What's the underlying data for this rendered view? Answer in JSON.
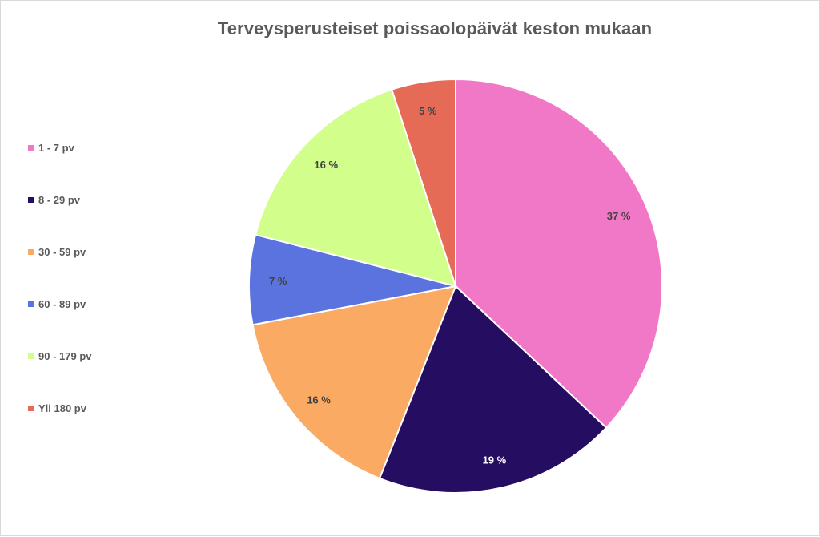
{
  "chart_data": {
    "type": "pie",
    "title": "Terveysperusteiset poissaolopäivät keston mukaan",
    "categories": [
      "1 - 7 pv",
      "8 - 29 pv",
      "30 - 59 pv",
      "60 - 89 pv",
      "90 - 179 pv",
      "Yli 180 pv"
    ],
    "values": [
      37,
      19,
      16,
      7,
      16,
      5
    ],
    "unit": "%",
    "data_labels": [
      "37 %",
      "19 %",
      "16 %",
      "7 %",
      "16 %",
      "5 %"
    ],
    "colors": [
      "#f178c6",
      "#250e62",
      "#fbaa64",
      "#5a73df",
      "#d2fe8c",
      "#e66b56"
    ],
    "label_colors": [
      "#404040",
      "#ffffff",
      "#404040",
      "#404040",
      "#404040",
      "#404040"
    ],
    "start_angle": "12 o'clock",
    "direction": "clockwise",
    "legend_position": "left"
  },
  "legend": {
    "items": [
      {
        "label": "1 - 7 pv",
        "color": "#f178c6"
      },
      {
        "label": "8 - 29 pv",
        "color": "#250e62"
      },
      {
        "label": "30 - 59 pv",
        "color": "#fbaa64"
      },
      {
        "label": "60 - 89 pv",
        "color": "#5a73df"
      },
      {
        "label": "90 - 179 pv",
        "color": "#d2fe8c"
      },
      {
        "label": "Yli 180 pv",
        "color": "#e66b56"
      }
    ]
  }
}
